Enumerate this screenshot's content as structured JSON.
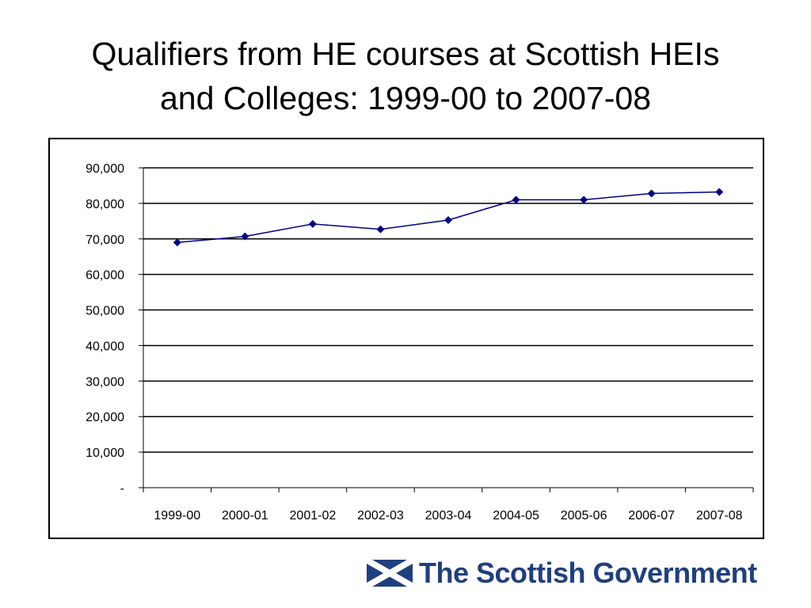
{
  "slide": {
    "title_line1": "Qualifiers from HE courses at Scottish HEIs",
    "title_line2": "and Colleges: 1999-00 to 2007-08"
  },
  "branding": {
    "logo_text": "The Scottish Government",
    "logo_color": "#1f3f7f",
    "flag_icon": "saltire-flag-icon"
  },
  "chart_data": {
    "type": "line",
    "title": "",
    "xlabel": "",
    "ylabel": "",
    "categories": [
      "1999-00",
      "2000-01",
      "2001-02",
      "2002-03",
      "2003-04",
      "2004-05",
      "2005-06",
      "2006-07",
      "2007-08"
    ],
    "series": [
      {
        "values": [
          69000,
          70700,
          74200,
          72700,
          75300,
          81000,
          81000,
          82800,
          83200
        ],
        "color": "#000080",
        "marker": "diamond"
      }
    ],
    "ylim": [
      0,
      90000
    ],
    "yticks": [
      0,
      10000,
      20000,
      30000,
      40000,
      50000,
      60000,
      70000,
      80000,
      90000
    ],
    "ytick_labels": [
      "-",
      "10,000",
      "20,000",
      "30,000",
      "40,000",
      "50,000",
      "60,000",
      "70,000",
      "80,000",
      "90,000"
    ],
    "grid": true,
    "legend": "none"
  }
}
